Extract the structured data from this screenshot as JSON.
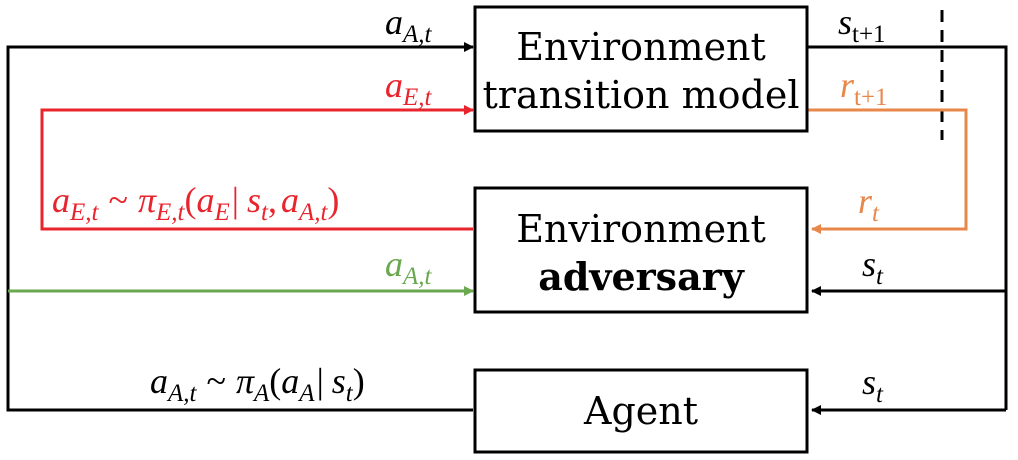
{
  "colors": {
    "black": "#000000",
    "red": "#e8242d",
    "orange": "#e8874a",
    "green": "#6aa84f"
  },
  "boxes": {
    "transition_line1": "Environment",
    "transition_line2": "transition model",
    "adversary_line1": "Environment",
    "adversary_line2": "adversary",
    "agent": "Agent"
  },
  "labels": {
    "a_A_t_top": {
      "base": "a",
      "sub": "A,t"
    },
    "a_E_t_top": {
      "base": "a",
      "sub": "E,t"
    },
    "s_t1": {
      "base": "s",
      "sub": "t+1"
    },
    "r_t1": {
      "base": "r",
      "sub": "t+1"
    },
    "r_t": {
      "base": "r",
      "sub": "t"
    },
    "a_A_t_green": {
      "base": "a",
      "sub": "A,t"
    },
    "s_t_adversary": {
      "base": "s",
      "sub": "t"
    },
    "s_t_agent": {
      "base": "s",
      "sub": "t"
    },
    "policy_E": {
      "lhs_base": "a",
      "lhs_sub": "E,t",
      "tilde": "~",
      "pi": "π",
      "pi_sub": "E,t",
      "open": "(",
      "arg_base": "a",
      "arg_sub": "E",
      "bar": "|",
      "s_base": "s",
      "s_sub": "t",
      "comma": ",",
      "a2_base": "a",
      "a2_sub": "A,t",
      "close": ")"
    },
    "policy_A": {
      "lhs_base": "a",
      "lhs_sub": "A,t",
      "tilde": "~",
      "pi": "π",
      "pi_sub": "A",
      "open": "(",
      "arg_base": "a",
      "arg_sub": "A",
      "bar": "|",
      "s_base": "s",
      "s_sub": "t",
      "close": ")"
    }
  }
}
